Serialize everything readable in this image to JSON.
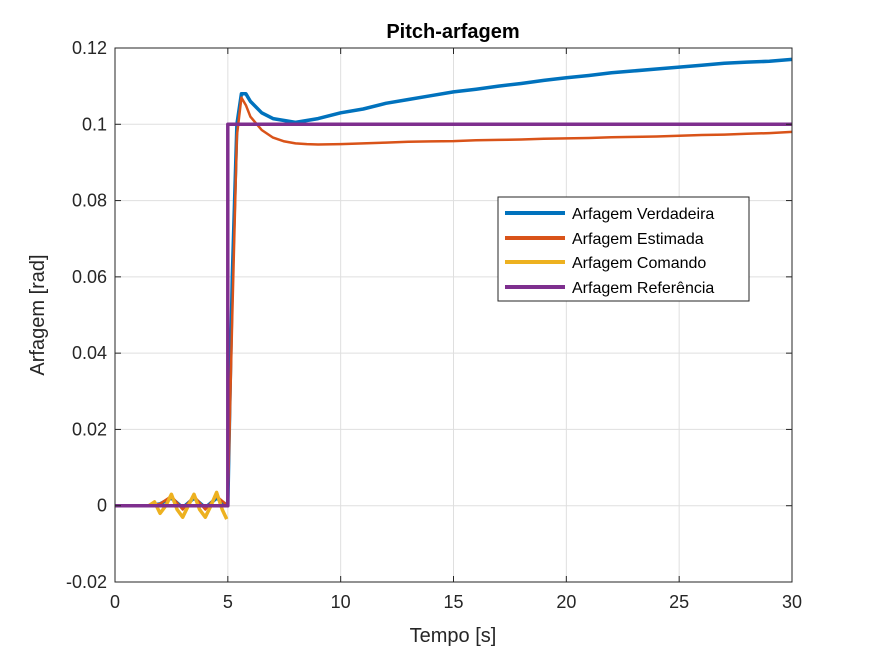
{
  "chart_data": {
    "type": "line",
    "title": "Pitch-arfagem",
    "xlabel": "Tempo [s]",
    "ylabel": "Arfagem [rad]",
    "xlim": [
      0,
      30
    ],
    "ylim": [
      -0.02,
      0.12
    ],
    "xticks": [
      0,
      5,
      10,
      15,
      20,
      25,
      30
    ],
    "xtick_labels": [
      "0",
      "5",
      "10",
      "15",
      "20",
      "25",
      "30"
    ],
    "yticks": [
      -0.02,
      0,
      0.02,
      0.04,
      0.06,
      0.08,
      0.1,
      0.12
    ],
    "ytick_labels": [
      "-0.02",
      "0",
      "0.02",
      "0.04",
      "0.06",
      "0.08",
      "0.1",
      "0.12"
    ],
    "grid": true,
    "legend_position": "upper-right-center",
    "series": [
      {
        "name": "Arfagem Verdadeira",
        "color": "#0072BD",
        "x": [
          0,
          1.5,
          2,
          2.5,
          3,
          3.5,
          4,
          4.5,
          5,
          5.2,
          5.4,
          5.6,
          5.8,
          6,
          6.5,
          7,
          7.5,
          8,
          8.5,
          9,
          10,
          11,
          12,
          13,
          14,
          15,
          16,
          17,
          18,
          19,
          20,
          21,
          22,
          23,
          24,
          25,
          26,
          27,
          28,
          29,
          30
        ],
        "y": [
          0,
          0,
          0.0005,
          0.002,
          -0.0005,
          0.002,
          -0.0005,
          0.002,
          0,
          0.06,
          0.1,
          0.108,
          0.108,
          0.106,
          0.103,
          0.1015,
          0.101,
          0.1005,
          0.101,
          0.1015,
          0.103,
          0.104,
          0.1055,
          0.1065,
          0.1075,
          0.1085,
          0.1092,
          0.11,
          0.1107,
          0.1115,
          0.1122,
          0.1128,
          0.1135,
          0.114,
          0.1145,
          0.115,
          0.1155,
          0.116,
          0.1163,
          0.1165,
          0.117
        ]
      },
      {
        "name": "Arfagem Estimada",
        "color": "#D95319",
        "x": [
          0,
          1.5,
          2,
          2.5,
          3,
          3.5,
          4,
          4.5,
          5,
          5.2,
          5.4,
          5.6,
          5.8,
          6,
          6.5,
          7,
          7.5,
          8,
          8.5,
          9,
          10,
          11,
          12,
          13,
          14,
          15,
          16,
          17,
          18,
          19,
          20,
          21,
          22,
          23,
          24,
          25,
          26,
          27,
          28,
          29,
          30
        ],
        "y": [
          0,
          0,
          0.0005,
          0.0025,
          -0.001,
          0.0025,
          -0.001,
          0.0025,
          0,
          0.05,
          0.097,
          0.107,
          0.105,
          0.102,
          0.0985,
          0.0965,
          0.0955,
          0.095,
          0.0948,
          0.0947,
          0.0948,
          0.095,
          0.0952,
          0.0954,
          0.0955,
          0.0956,
          0.0958,
          0.0959,
          0.096,
          0.0962,
          0.0963,
          0.0964,
          0.0966,
          0.0967,
          0.0968,
          0.097,
          0.0972,
          0.0973,
          0.0975,
          0.0977,
          0.098
        ]
      },
      {
        "name": "Arfagem Comando",
        "color": "#EDB120",
        "x": [
          0,
          1.5,
          1.75,
          2,
          2.25,
          2.5,
          2.75,
          3,
          3.25,
          3.5,
          3.75,
          4,
          4.25,
          4.5,
          4.75,
          4.95
        ],
        "y": [
          0,
          0,
          0.001,
          -0.002,
          0.0,
          0.003,
          -0.001,
          -0.003,
          0.0,
          0.003,
          -0.001,
          -0.003,
          0.0,
          0.0035,
          -0.001,
          -0.0035
        ]
      },
      {
        "name": "Arfagem Referência",
        "color": "#7E2F8E",
        "x": [
          0,
          5,
          5,
          30
        ],
        "y": [
          0,
          0,
          0.1,
          0.1
        ]
      }
    ]
  }
}
